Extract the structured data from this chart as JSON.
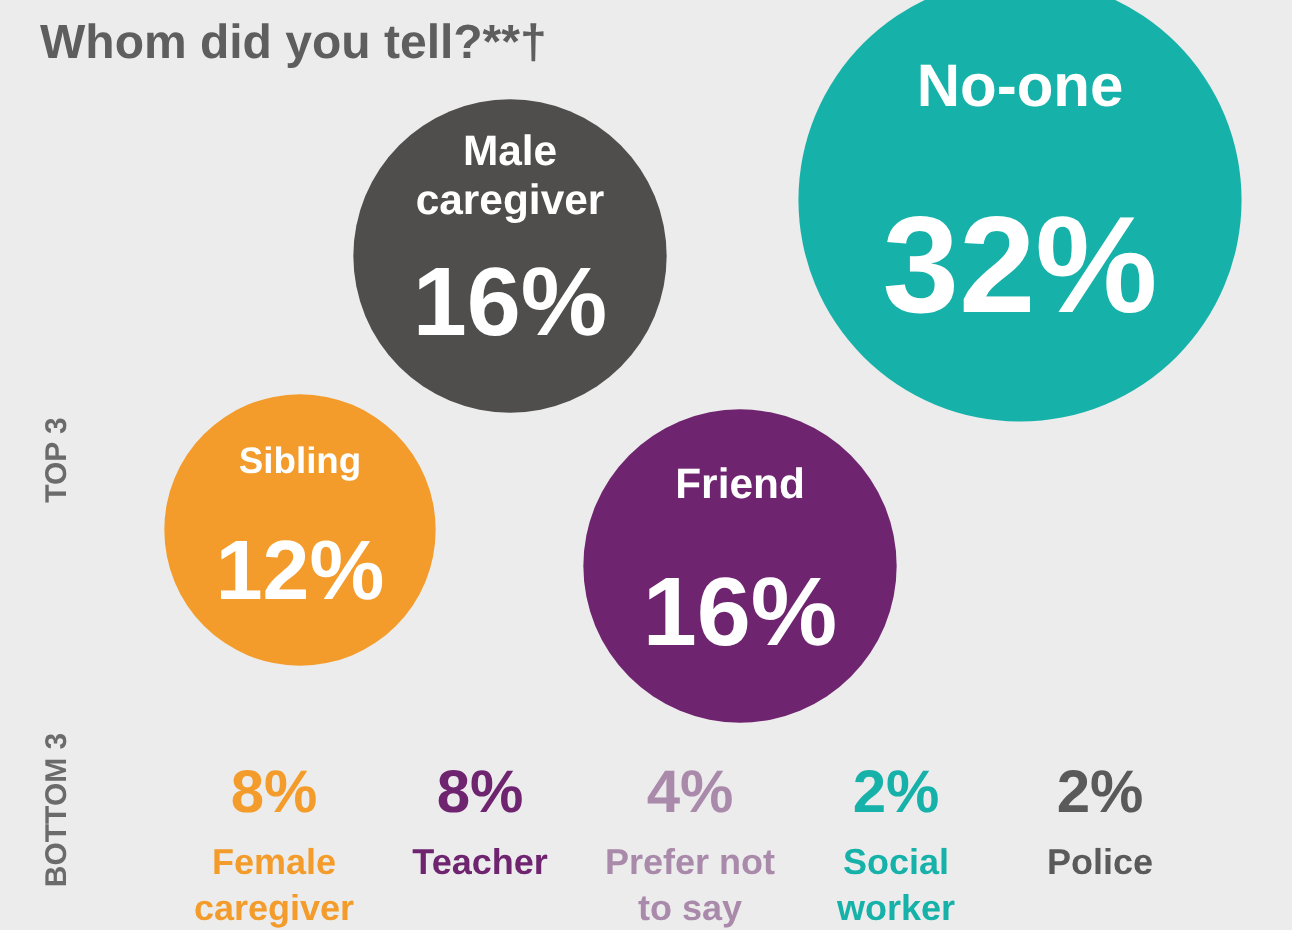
{
  "chart_data": {
    "type": "other",
    "title": "Whom did you tell?**†",
    "categories": [
      "No-one",
      "Male caregiver",
      "Sibling",
      "Friend",
      "Female caregiver",
      "Teacher",
      "Prefer not to say",
      "Social worker",
      "Police"
    ],
    "values": [
      32,
      16,
      12,
      16,
      8,
      8,
      4,
      2,
      2
    ],
    "value_labels": [
      "32%",
      "16%",
      "12%",
      "16%",
      "8%",
      "8%",
      "4%",
      "2%",
      "2%"
    ],
    "colors": [
      "#16b2a9",
      "#4f4e4c",
      "#f39c2b",
      "#6f2470",
      "#f39c2b",
      "#6f2470",
      "#a98aaa",
      "#16b2a9",
      "#5a5a5a"
    ],
    "annotations": [
      "TOP 3",
      "BOTTOM 3"
    ]
  }
}
